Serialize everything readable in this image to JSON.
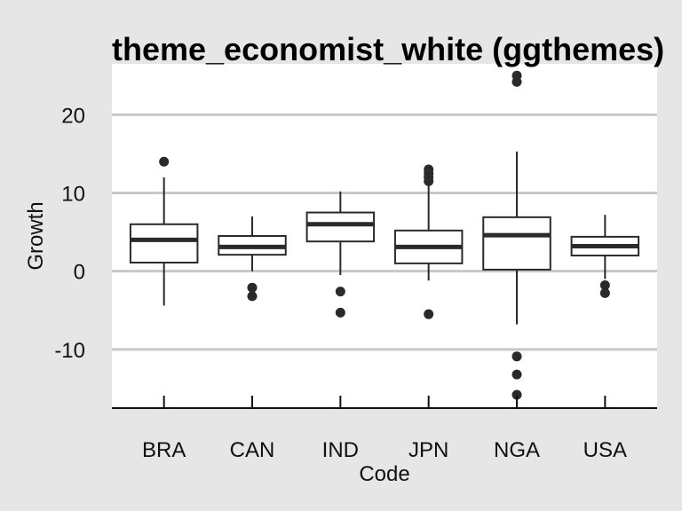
{
  "chart_data": {
    "type": "boxplot",
    "title": "theme_economist_white (ggthemes)",
    "xlabel": "Code",
    "ylabel": "Growth",
    "categories": [
      "BRA",
      "CAN",
      "IND",
      "JPN",
      "NGA",
      "USA"
    ],
    "ylim": [
      -17.5,
      26.5
    ],
    "yticks": [
      -10,
      0,
      10,
      20
    ],
    "ytick_labels": [
      "-10",
      "0",
      "10",
      "20"
    ],
    "grid": "horizontal major",
    "legend": "none",
    "colors": {
      "background": "#e6e6e6",
      "panel": "#ffffff",
      "grid": "#c8c8c8",
      "box_line": "#2a2a2a",
      "axis": "#111111"
    },
    "boxes": [
      {
        "category": "BRA",
        "lower_whisker": -4.4,
        "q1": 1.1,
        "median": 4.0,
        "q3": 6.0,
        "upper_whisker": 12.0,
        "outliers": [
          14.0
        ]
      },
      {
        "category": "CAN",
        "lower_whisker": 0.0,
        "q1": 2.1,
        "median": 3.1,
        "q3": 4.5,
        "upper_whisker": 7.0,
        "outliers": [
          -2.1,
          -3.2
        ]
      },
      {
        "category": "IND",
        "lower_whisker": -0.5,
        "q1": 3.8,
        "median": 6.0,
        "q3": 7.5,
        "upper_whisker": 10.2,
        "outliers": [
          -2.6,
          -5.3
        ]
      },
      {
        "category": "JPN",
        "lower_whisker": -1.2,
        "q1": 1.0,
        "median": 3.1,
        "q3": 5.2,
        "upper_whisker": 11.0,
        "outliers": [
          11.5,
          12.0,
          12.5,
          13.0,
          -5.5
        ]
      },
      {
        "category": "NGA",
        "lower_whisker": -6.8,
        "q1": 0.2,
        "median": 4.6,
        "q3": 6.9,
        "upper_whisker": 15.3,
        "outliers": [
          24.2,
          25.0,
          -10.9,
          -13.2,
          -15.8
        ]
      },
      {
        "category": "USA",
        "lower_whisker": -1.0,
        "q1": 2.0,
        "median": 3.2,
        "q3": 4.4,
        "upper_whisker": 7.2,
        "outliers": [
          -1.8,
          -2.8
        ]
      }
    ]
  }
}
